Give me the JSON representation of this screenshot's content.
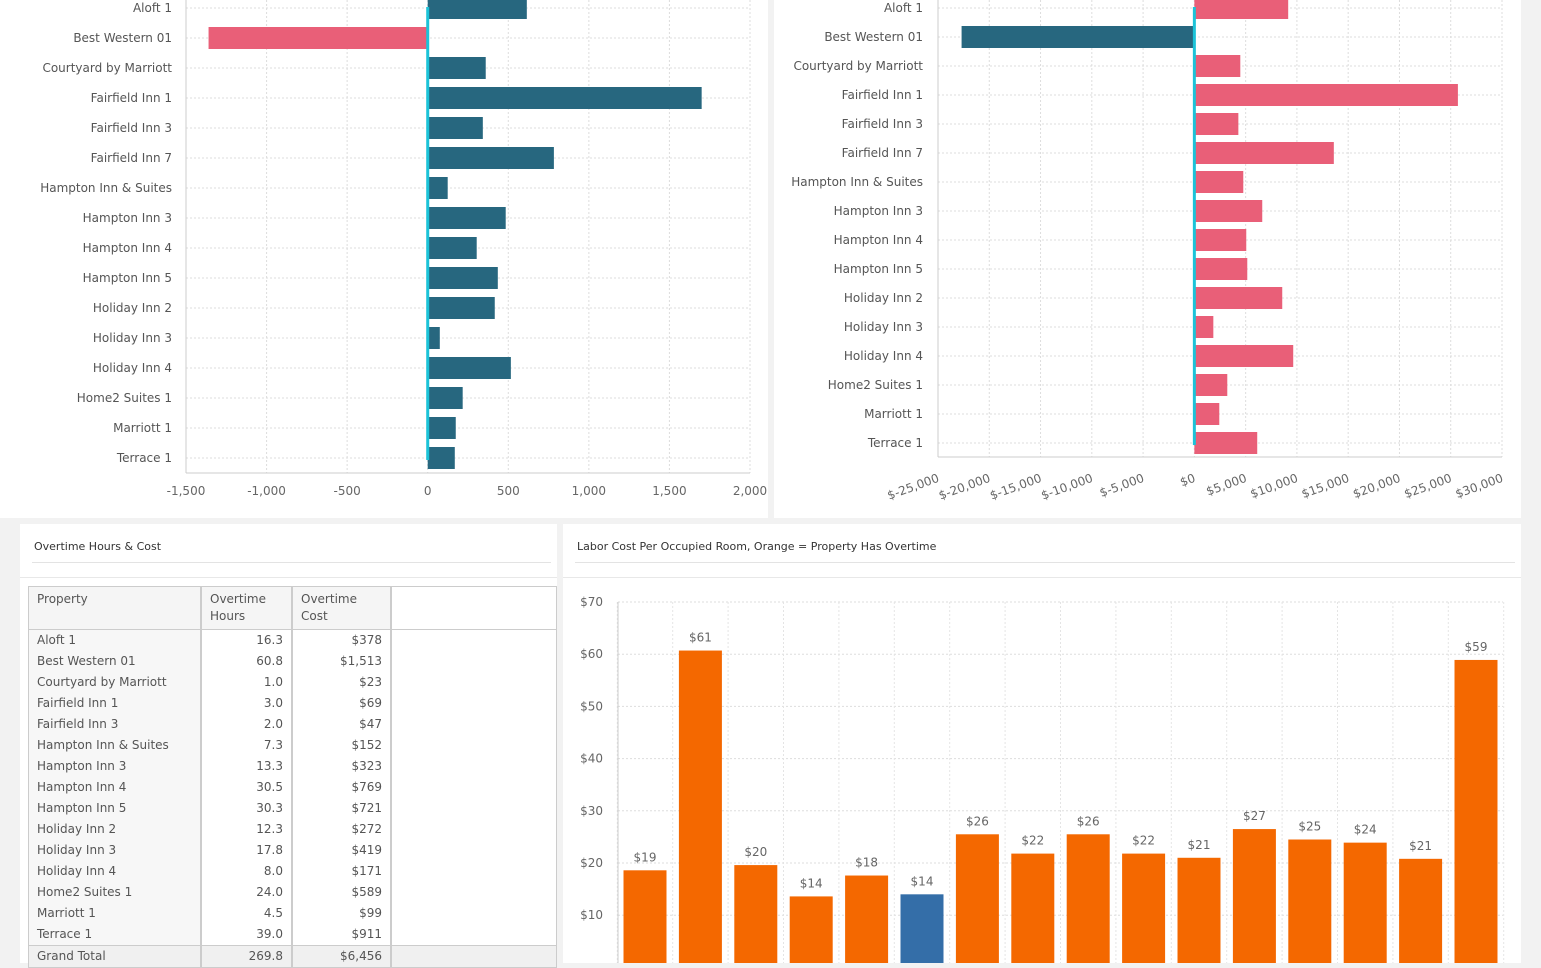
{
  "chart_data": [
    {
      "id": "hours-variance",
      "type": "bar",
      "orientation": "horizontal",
      "title": "",
      "xlabel": "",
      "ylabel": "",
      "xlim": [
        -1500,
        2000
      ],
      "xticks": [
        -1500,
        -1000,
        -500,
        0,
        500,
        1000,
        1500,
        2000
      ],
      "xtick_labels": [
        "-1,500",
        "-1,000",
        "-500",
        "0",
        "500",
        "1,000",
        "1,500",
        "2,000"
      ],
      "grid": true,
      "positive_color": "#27677f",
      "negative_color": "#e95f78",
      "zero_line_color": "#1cc3d8",
      "categories": [
        "Aloft 1",
        "Best Western 01",
        "Courtyard by Marriott",
        "Fairfield Inn 1",
        "Fairfield Inn 3",
        "Fairfield Inn 7",
        "Hampton Inn & Suites",
        "Hampton Inn 3",
        "Hampton Inn 4",
        "Hampton Inn 5",
        "Holiday Inn 2",
        "Holiday Inn 3",
        "Holiday Inn 4",
        "Home2 Suites 1",
        "Marriott 1",
        "Terrace 1"
      ],
      "values": [
        615,
        -1360,
        360,
        1700,
        342,
        783,
        124,
        484,
        304,
        435,
        416,
        75,
        516,
        217,
        174,
        168
      ]
    },
    {
      "id": "cost-variance",
      "type": "bar",
      "orientation": "horizontal",
      "title": "",
      "xlabel": "",
      "ylabel": "",
      "xlim": [
        -25000,
        30000
      ],
      "xticks": [
        -25000,
        -20000,
        -15000,
        -10000,
        -5000,
        0,
        5000,
        10000,
        15000,
        20000,
        25000,
        30000
      ],
      "xtick_labels": [
        "$-25,000",
        "$-20,000",
        "$-15,000",
        "$-10,000",
        "$-5,000",
        "$0",
        "$5,000",
        "$10,000",
        "$15,000",
        "$20,000",
        "$25,000",
        "$30,000"
      ],
      "grid": true,
      "positive_color": "#e95f78",
      "negative_color": "#27677f",
      "zero_line_color": "#1cc3d8",
      "categories": [
        "Aloft 1",
        "Best Western 01",
        "Courtyard by Marriott",
        "Fairfield Inn 1",
        "Fairfield Inn 3",
        "Fairfield Inn 7",
        "Hampton Inn & Suites",
        "Hampton Inn 3",
        "Hampton Inn 4",
        "Hampton Inn 5",
        "Holiday Inn 2",
        "Holiday Inn 3",
        "Holiday Inn 4",
        "Home2 Suites 1",
        "Marriott 1",
        "Terrace 1"
      ],
      "values": [
        9150,
        -22700,
        4480,
        25700,
        4290,
        13600,
        4770,
        6620,
        5060,
        5160,
        8570,
        1850,
        9640,
        3210,
        2430,
        6130
      ]
    },
    {
      "id": "labor-cost-per-room",
      "type": "bar",
      "title": "Labor Cost Per Occupied Room, Orange = Property Has Overtime",
      "xlabel": "",
      "ylabel": "",
      "ylim": [
        0,
        70
      ],
      "yticks": [
        10,
        20,
        30,
        40,
        50,
        60,
        70
      ],
      "ytick_labels": [
        "$10",
        "$20",
        "$30",
        "$40",
        "$50",
        "$60",
        "$70"
      ],
      "grid": true,
      "overtime_color": "#f46800",
      "no_overtime_color": "#346ea8",
      "values": [
        18.6,
        60.7,
        19.6,
        13.6,
        17.6,
        14.0,
        25.5,
        21.8,
        25.5,
        21.8,
        21.0,
        26.5,
        24.5,
        23.9,
        20.8,
        58.9
      ],
      "value_labels": [
        "$19",
        "$61",
        "$20",
        "$14",
        "$18",
        "$14",
        "$26",
        "$22",
        "$26",
        "$22",
        "$21",
        "$27",
        "$25",
        "$24",
        "$21",
        "$59"
      ],
      "has_overtime": [
        true,
        true,
        true,
        true,
        true,
        false,
        true,
        true,
        true,
        true,
        true,
        true,
        true,
        true,
        true,
        true
      ]
    }
  ],
  "overtime_panel": {
    "title": "Overtime Hours & Cost",
    "columns": [
      "Property",
      "Overtime Hours",
      "Overtime Cost"
    ],
    "col_header_lines": [
      [
        "Property"
      ],
      [
        "Overtime",
        "Hours"
      ],
      [
        "Overtime",
        "Cost"
      ]
    ],
    "rows": [
      {
        "property": "Aloft 1",
        "hours": "16.3",
        "cost": "$378"
      },
      {
        "property": "Best Western 01",
        "hours": "60.8",
        "cost": "$1,513"
      },
      {
        "property": "Courtyard by Marriott",
        "hours": "1.0",
        "cost": "$23"
      },
      {
        "property": "Fairfield Inn 1",
        "hours": "3.0",
        "cost": "$69"
      },
      {
        "property": "Fairfield Inn 3",
        "hours": "2.0",
        "cost": "$47"
      },
      {
        "property": "Hampton Inn & Suites",
        "hours": "7.3",
        "cost": "$152"
      },
      {
        "property": "Hampton Inn 3",
        "hours": "13.3",
        "cost": "$323"
      },
      {
        "property": "Hampton Inn 4",
        "hours": "30.5",
        "cost": "$769"
      },
      {
        "property": "Hampton Inn 5",
        "hours": "30.3",
        "cost": "$721"
      },
      {
        "property": "Holiday Inn 2",
        "hours": "12.3",
        "cost": "$272"
      },
      {
        "property": "Holiday Inn 3",
        "hours": "17.8",
        "cost": "$419"
      },
      {
        "property": "Holiday Inn 4",
        "hours": "8.0",
        "cost": "$171"
      },
      {
        "property": "Home2 Suites 1",
        "hours": "24.0",
        "cost": "$589"
      },
      {
        "property": "Marriott 1",
        "hours": "4.5",
        "cost": "$99"
      },
      {
        "property": "Terrace 1",
        "hours": "39.0",
        "cost": "$911"
      }
    ],
    "total": {
      "property": "Grand Total",
      "hours": "269.8",
      "cost": "$6,456"
    }
  },
  "labor_panel": {
    "title": "Labor Cost Per Occupied Room, Orange = Property Has Overtime"
  }
}
